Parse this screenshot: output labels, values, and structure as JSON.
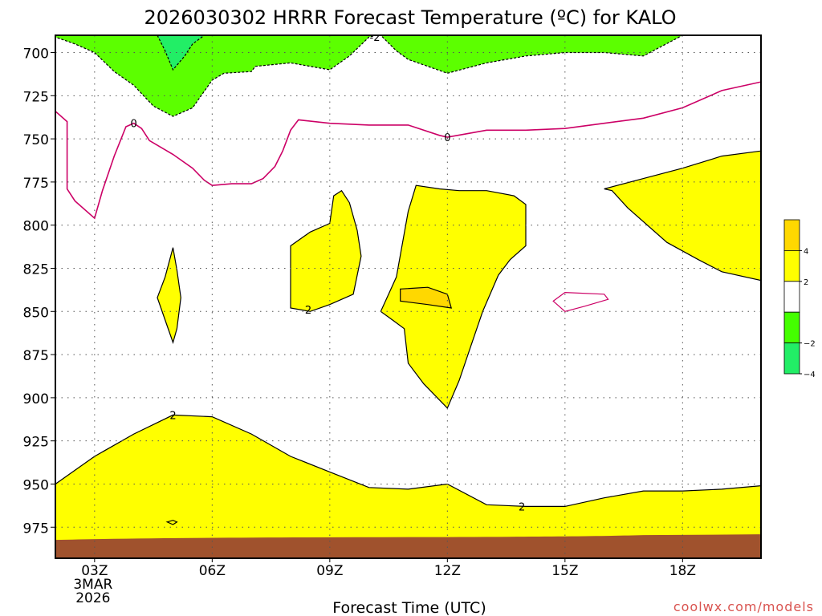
{
  "chart_data": {
    "type": "contour",
    "title": "2026030302 HRRR Forecast Temperature (ºC) for KALO",
    "xlabel": "Forecast Time (UTC)",
    "ylabel": "",
    "credit": "coolwx.com/models",
    "x_unit": "forecast hour (UTC)",
    "xlim": [
      2,
      20
    ],
    "ylim_hPa": [
      690,
      993
    ],
    "y_ticks": [
      700,
      725,
      750,
      775,
      800,
      825,
      850,
      875,
      900,
      925,
      950,
      975
    ],
    "x_ticks": [
      {
        "hour": 3,
        "lines": [
          "03Z",
          "3MAR",
          "2026"
        ]
      },
      {
        "hour": 6,
        "lines": [
          "06Z"
        ]
      },
      {
        "hour": 9,
        "lines": [
          "09Z"
        ]
      },
      {
        "hour": 12,
        "lines": [
          "12Z"
        ]
      },
      {
        "hour": 15,
        "lines": [
          "15Z"
        ]
      },
      {
        "hour": 18,
        "lines": [
          "18Z"
        ]
      }
    ],
    "grid": true,
    "colorbar": {
      "placement": "right",
      "bins": [
        {
          "from": 4,
          "to": 6,
          "color": "#ffd800"
        },
        {
          "from": 2,
          "to": 4,
          "color": "#ffff00"
        },
        {
          "from": -2,
          "to": 2,
          "color": "#ffffff"
        },
        {
          "from": -4,
          "to": -2,
          "color": "#44ff00"
        },
        {
          "from": -6,
          "to": -4,
          "color": "#22ee66"
        }
      ],
      "tick_labels": [
        "4",
        "2",
        "−2",
        "−4"
      ]
    },
    "surface_color": "#a0522d",
    "regions": [
      {
        "name": "cold_minus2",
        "fill": "#5cff00",
        "stroke": "#000000",
        "dash": true,
        "points": [
          [
            2,
            690
          ],
          [
            2,
            691
          ],
          [
            2.5,
            695
          ],
          [
            3,
            700
          ],
          [
            3.5,
            711
          ],
          [
            4,
            719
          ],
          [
            4.5,
            731
          ],
          [
            5,
            737
          ],
          [
            5.5,
            732
          ],
          [
            6,
            716
          ],
          [
            6.3,
            712
          ],
          [
            7,
            711
          ],
          [
            7.1,
            708
          ],
          [
            8,
            706
          ],
          [
            9,
            710
          ],
          [
            9.5,
            702
          ],
          [
            10,
            691
          ],
          [
            10.2,
            690
          ],
          [
            10.3,
            690
          ],
          [
            10.7,
            699
          ],
          [
            11,
            704
          ],
          [
            12,
            712
          ],
          [
            13,
            706
          ],
          [
            14,
            702
          ],
          [
            15,
            700
          ],
          [
            16,
            700
          ],
          [
            17,
            702
          ],
          [
            18,
            690
          ]
        ]
      },
      {
        "name": "cold_minus4",
        "fill": "#22ee66",
        "stroke": "#000000",
        "dash": true,
        "points": [
          [
            4.6,
            690
          ],
          [
            4.8,
            699
          ],
          [
            5,
            710
          ],
          [
            5.3,
            702
          ],
          [
            5.5,
            695
          ],
          [
            5.8,
            690
          ]
        ]
      },
      {
        "name": "warm_low",
        "fill": "#ffff00",
        "stroke": "#000000",
        "points": [
          [
            2,
            950
          ],
          [
            3,
            934
          ],
          [
            4,
            921
          ],
          [
            5,
            910
          ],
          [
            6,
            911
          ],
          [
            7,
            921
          ],
          [
            8,
            934
          ],
          [
            9,
            943
          ],
          [
            10,
            952
          ],
          [
            11,
            953
          ],
          [
            12,
            950
          ],
          [
            13,
            962
          ],
          [
            14,
            963
          ],
          [
            15,
            963
          ],
          [
            16,
            958
          ],
          [
            17,
            954
          ],
          [
            18,
            954
          ],
          [
            19,
            953
          ],
          [
            20,
            951
          ],
          [
            20,
            993
          ],
          [
            2,
            993
          ]
        ]
      },
      {
        "name": "warm_upper_right",
        "fill": "#ffff00",
        "stroke": "#000000",
        "points": [
          [
            16,
            779
          ],
          [
            17,
            773
          ],
          [
            18,
            767
          ],
          [
            19,
            760
          ],
          [
            20,
            757
          ],
          [
            20,
            832
          ],
          [
            19,
            827
          ],
          [
            18.4,
            820
          ],
          [
            17.6,
            810
          ],
          [
            16.6,
            790
          ],
          [
            16.2,
            780
          ]
        ]
      },
      {
        "name": "warm_center",
        "fill": "#ffff00",
        "stroke": "#000000",
        "points": [
          [
            10.3,
            850
          ],
          [
            10.5,
            840
          ],
          [
            10.7,
            830
          ],
          [
            11,
            792
          ],
          [
            11.2,
            777
          ],
          [
            11.8,
            779
          ],
          [
            12.3,
            780
          ],
          [
            13,
            780
          ],
          [
            13.7,
            783
          ],
          [
            14,
            788
          ],
          [
            14,
            812
          ],
          [
            13.6,
            820
          ],
          [
            13.3,
            829
          ],
          [
            12.9,
            850
          ],
          [
            12.6,
            870
          ],
          [
            12.3,
            890
          ],
          [
            12,
            906
          ],
          [
            11.4,
            892
          ],
          [
            11,
            880
          ],
          [
            10.9,
            860
          ],
          [
            10.6,
            855
          ]
        ]
      },
      {
        "name": "warm_center_core",
        "fill": "#ffd800",
        "stroke": "#000000",
        "points": [
          [
            10.8,
            837
          ],
          [
            11.5,
            836
          ],
          [
            12,
            840
          ],
          [
            12.1,
            848
          ],
          [
            11.5,
            846
          ],
          [
            10.8,
            844
          ]
        ]
      },
      {
        "name": "warm_09z",
        "fill": "#ffff00",
        "stroke": "#000000",
        "points": [
          [
            8,
            812
          ],
          [
            8.5,
            804
          ],
          [
            9,
            799
          ],
          [
            9.1,
            783
          ],
          [
            9.3,
            780
          ],
          [
            9.5,
            787
          ],
          [
            9.7,
            803
          ],
          [
            9.8,
            818
          ],
          [
            9.6,
            840
          ],
          [
            9,
            846
          ],
          [
            8.5,
            850
          ],
          [
            8,
            848
          ]
        ]
      },
      {
        "name": "warm_05z",
        "fill": "#ffff00",
        "stroke": "#000000",
        "points": [
          [
            4.6,
            842
          ],
          [
            4.8,
            830
          ],
          [
            5,
            813
          ],
          [
            5.1,
            826
          ],
          [
            5.2,
            842
          ],
          [
            5.1,
            860
          ],
          [
            5,
            868
          ],
          [
            4.8,
            855
          ]
        ]
      },
      {
        "name": "tiny_2",
        "fill": "none",
        "stroke": "#000000",
        "points": [
          [
            4.85,
            972
          ],
          [
            5,
            971
          ],
          [
            5.1,
            972
          ],
          [
            5,
            973.5
          ]
        ]
      },
      {
        "name": "tiny_0_15z",
        "fill": "none",
        "stroke": "#cc0066",
        "points": [
          [
            14.7,
            844
          ],
          [
            15,
            839
          ],
          [
            16,
            840
          ],
          [
            16.1,
            843
          ],
          [
            15.5,
            847
          ],
          [
            15,
            850
          ]
        ]
      }
    ],
    "zero_line": {
      "color": "#cc0066",
      "points": [
        [
          2,
          734
        ],
        [
          2.3,
          740
        ],
        [
          2.3,
          779
        ],
        [
          2.5,
          786
        ],
        [
          3,
          796
        ],
        [
          3.2,
          780
        ],
        [
          3.5,
          760
        ],
        [
          3.8,
          743
        ],
        [
          4,
          741
        ],
        [
          4.2,
          744
        ],
        [
          4.4,
          751
        ],
        [
          5,
          759
        ],
        [
          5.5,
          767
        ],
        [
          5.8,
          774
        ],
        [
          6,
          777
        ],
        [
          6.5,
          776
        ],
        [
          7,
          776
        ],
        [
          7.3,
          773
        ],
        [
          7.6,
          766
        ],
        [
          7.8,
          757
        ],
        [
          8,
          745
        ],
        [
          8.2,
          739
        ],
        [
          9,
          741
        ],
        [
          10,
          742
        ],
        [
          11,
          742
        ],
        [
          11.8,
          748
        ],
        [
          12,
          749
        ],
        [
          12.5,
          747
        ],
        [
          13,
          745
        ],
        [
          14,
          745
        ],
        [
          15,
          744
        ],
        [
          16,
          741
        ],
        [
          17,
          738
        ],
        [
          18,
          732
        ],
        [
          19,
          722
        ],
        [
          20,
          717
        ]
      ]
    },
    "contour_labels": [
      {
        "text": "0",
        "x": 4.0,
        "y": 741
      },
      {
        "text": "0",
        "x": 12.0,
        "y": 749
      },
      {
        "text": "-2",
        "x": 10.15,
        "y": 691
      },
      {
        "text": "2",
        "x": 5.0,
        "y": 910
      },
      {
        "text": "2",
        "x": 8.45,
        "y": 849
      },
      {
        "text": "2",
        "x": 13.9,
        "y": 963
      }
    ]
  }
}
